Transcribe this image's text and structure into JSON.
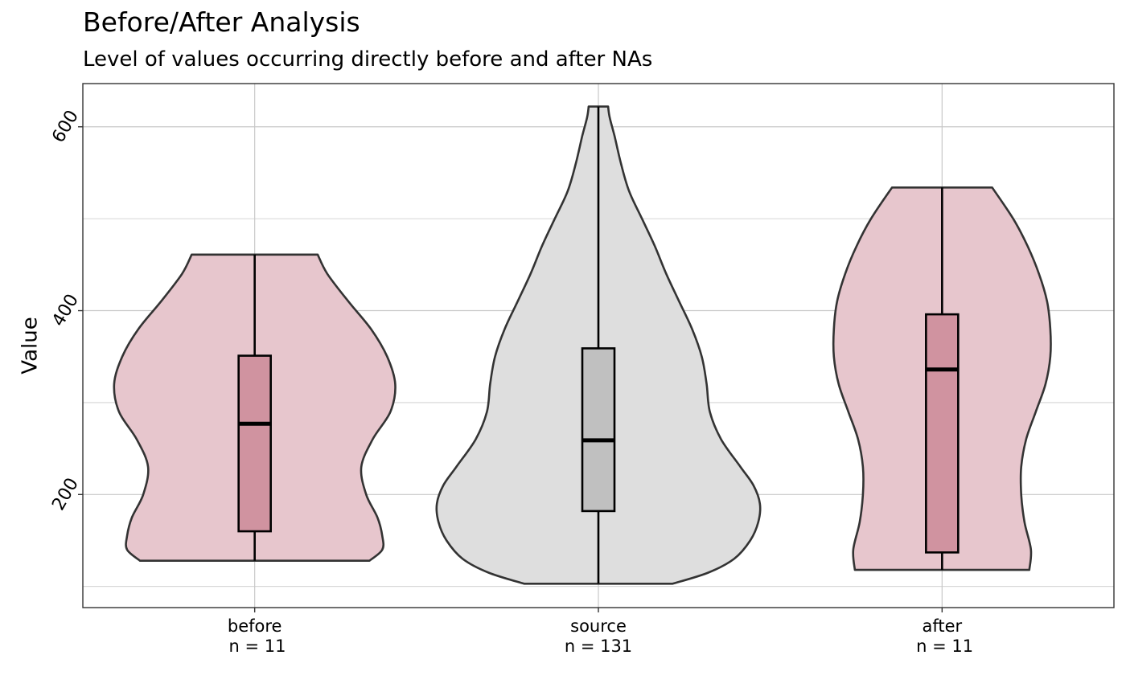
{
  "chart_data": {
    "type": "violin",
    "title": "Before/After Analysis",
    "subtitle": "Level of values occurring directly before and after NAs",
    "xlabel": "",
    "ylabel": "Value",
    "ylim": [
      77,
      647
    ],
    "y_ticks": [
      200,
      400,
      600
    ],
    "y_minor_ticks": [
      100,
      300,
      500
    ],
    "grid": true,
    "legend": "none",
    "categories": [
      "before",
      "source",
      "after"
    ],
    "tick_labels": [
      [
        "before",
        " n = 11"
      ],
      [
        "source",
        "n = 131"
      ],
      [
        "after",
        " n = 11"
      ]
    ],
    "groups": [
      {
        "name": "before",
        "n": 11,
        "min": 128,
        "q1": 160,
        "median": 277,
        "q3": 351,
        "max": 461,
        "density": [
          [
            128,
            0.71
          ],
          [
            140,
            0.79
          ],
          [
            155,
            0.79
          ],
          [
            175,
            0.76
          ],
          [
            200,
            0.69
          ],
          [
            230,
            0.66
          ],
          [
            260,
            0.73
          ],
          [
            290,
            0.84
          ],
          [
            320,
            0.87
          ],
          [
            350,
            0.82
          ],
          [
            380,
            0.72
          ],
          [
            410,
            0.58
          ],
          [
            440,
            0.45
          ],
          [
            461,
            0.39
          ]
        ]
      },
      {
        "name": "source",
        "n": 131,
        "min": 103,
        "q1": 182,
        "median": 259,
        "q3": 359,
        "max": 622,
        "density": [
          [
            103,
            0.46
          ],
          [
            115,
            0.68
          ],
          [
            130,
            0.84
          ],
          [
            150,
            0.94
          ],
          [
            170,
            0.99
          ],
          [
            190,
            1.0
          ],
          [
            210,
            0.96
          ],
          [
            230,
            0.88
          ],
          [
            260,
            0.76
          ],
          [
            290,
            0.69
          ],
          [
            320,
            0.67
          ],
          [
            350,
            0.64
          ],
          [
            380,
            0.58
          ],
          [
            410,
            0.5
          ],
          [
            440,
            0.42
          ],
          [
            470,
            0.35
          ],
          [
            500,
            0.27
          ],
          [
            530,
            0.19
          ],
          [
            560,
            0.14
          ],
          [
            590,
            0.1
          ],
          [
            610,
            0.07
          ],
          [
            622,
            0.06
          ]
        ]
      },
      {
        "name": "after",
        "n": 11,
        "min": 118,
        "q1": 137,
        "median": 336,
        "q3": 396,
        "max": 534,
        "density": [
          [
            118,
            0.54
          ],
          [
            140,
            0.55
          ],
          [
            170,
            0.51
          ],
          [
            200,
            0.49
          ],
          [
            230,
            0.49
          ],
          [
            260,
            0.52
          ],
          [
            290,
            0.58
          ],
          [
            320,
            0.64
          ],
          [
            350,
            0.67
          ],
          [
            380,
            0.67
          ],
          [
            410,
            0.65
          ],
          [
            440,
            0.6
          ],
          [
            470,
            0.53
          ],
          [
            500,
            0.44
          ],
          [
            534,
            0.31
          ]
        ]
      }
    ],
    "colors": {
      "before_fill": "#e7c6cd",
      "before_box": "#d093a0",
      "source_fill": "#dedede",
      "source_box": "#c0c0c0",
      "after_fill": "#e7c6cd",
      "after_box": "#d093a0",
      "outline": "#333333",
      "grid": "#c8c8c8"
    }
  }
}
